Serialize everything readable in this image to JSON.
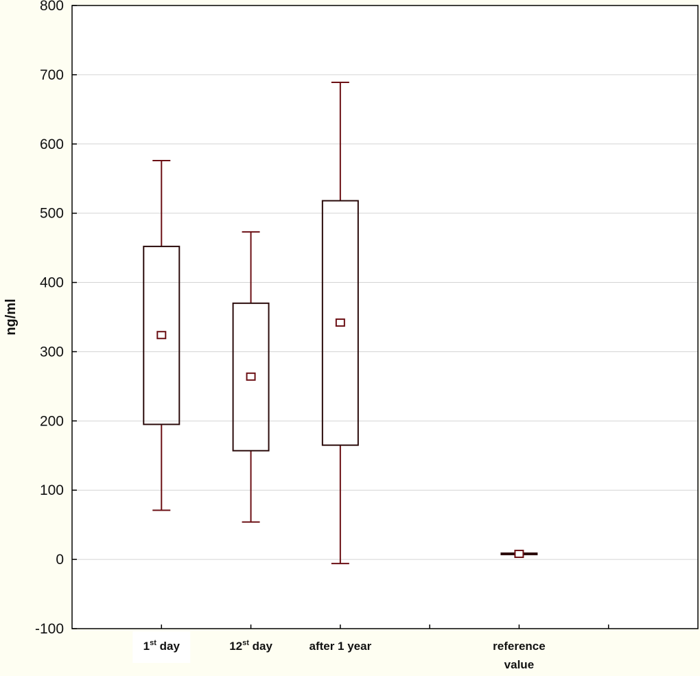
{
  "chart_data": {
    "type": "box",
    "ylabel": "ng/ml",
    "ylim": [
      -100,
      800
    ],
    "yticks": [
      -100,
      0,
      100,
      200,
      300,
      400,
      500,
      600,
      700,
      800
    ],
    "grid": true,
    "categories": [
      {
        "label": "1",
        "sup": "st",
        "suffix": " day",
        "label2": "",
        "highlight": true
      },
      {
        "label": "12",
        "sup": "st",
        "suffix": " day",
        "label2": "",
        "highlight": false
      },
      {
        "label": "after 1 year",
        "sup": "",
        "suffix": "",
        "label2": "",
        "highlight": false
      },
      {
        "label": "reference",
        "sup": "",
        "suffix": "",
        "label2": "value",
        "highlight": false
      }
    ],
    "boxes": [
      {
        "category": 1,
        "mean": 324,
        "box_low": 195,
        "box_high": 452,
        "whisker_low": 71,
        "whisker_high": 576
      },
      {
        "category": 2,
        "mean": 264,
        "box_low": 157,
        "box_high": 370,
        "whisker_low": 54,
        "whisker_high": 473
      },
      {
        "category": 3,
        "mean": 342,
        "box_low": 165,
        "box_high": 518,
        "whisker_low": -6,
        "whisker_high": 689
      },
      {
        "category": 5,
        "mean": 8,
        "box_low": 7,
        "box_high": 9,
        "whisker_low": 7,
        "whisker_high": 9
      }
    ],
    "x_positions": 7,
    "colors": {
      "series": "#6b0f14",
      "grid": "#d4d4d4",
      "axis": "#000000",
      "label_highlight": "#ffffff"
    }
  }
}
